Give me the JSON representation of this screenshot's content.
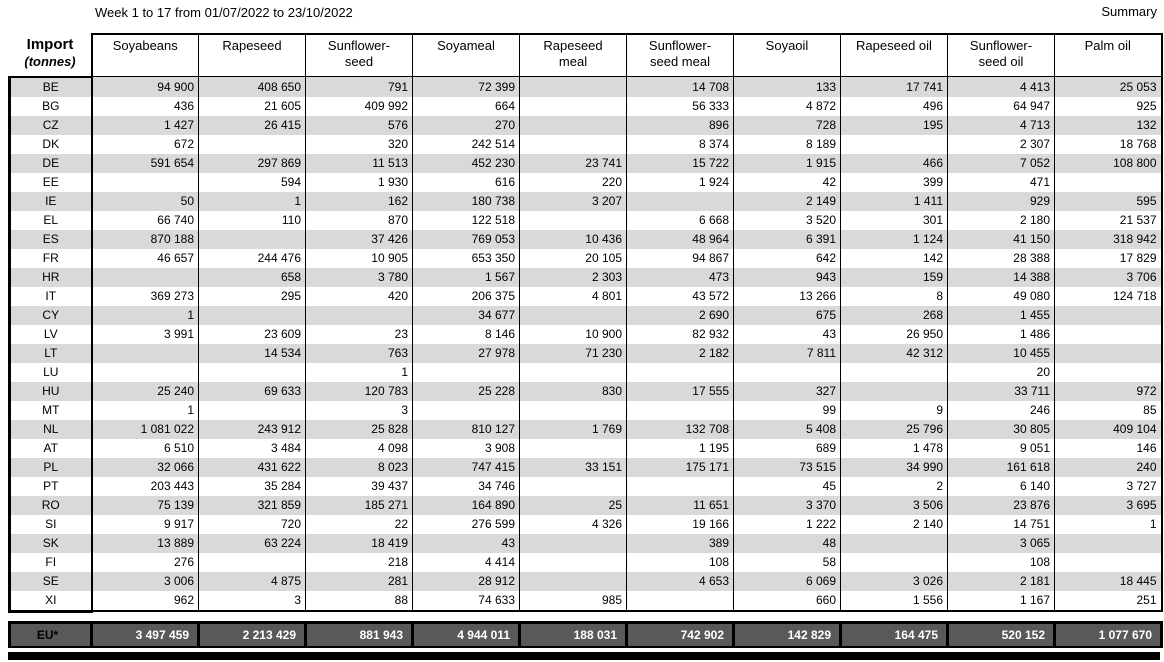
{
  "header": {
    "title": "Week 1 to 17 from 01/07/2022 to 23/10/2022",
    "summary_label": "Summary"
  },
  "table": {
    "corner": {
      "label": "Import",
      "unit": "(tonnes)"
    },
    "columns": [
      "Soyabeans",
      "Rapeseed",
      "Sunflower-seed",
      "Soyameal",
      "Rapeseed meal",
      "Sunflower-seed meal",
      "Soyaoil",
      "Rapeseed oil",
      "Sunflower-seed oil",
      "Palm oil"
    ],
    "rows": [
      {
        "country": "BE",
        "values": [
          "94 900",
          "408 650",
          "791",
          "72 399",
          "",
          "14 708",
          "133",
          "17 741",
          "4 413",
          "25 053"
        ]
      },
      {
        "country": "BG",
        "values": [
          "436",
          "21 605",
          "409 992",
          "664",
          "",
          "56 333",
          "4 872",
          "496",
          "64 947",
          "925"
        ]
      },
      {
        "country": "CZ",
        "values": [
          "1 427",
          "26 415",
          "576",
          "270",
          "",
          "896",
          "728",
          "195",
          "4 713",
          "132"
        ]
      },
      {
        "country": "DK",
        "values": [
          "672",
          "",
          "320",
          "242 514",
          "",
          "8 374",
          "8 189",
          "",
          "2 307",
          "18 768"
        ]
      },
      {
        "country": "DE",
        "values": [
          "591 654",
          "297 869",
          "11 513",
          "452 230",
          "23 741",
          "15 722",
          "1 915",
          "466",
          "7 052",
          "108 800"
        ]
      },
      {
        "country": "EE",
        "values": [
          "",
          "594",
          "1 930",
          "616",
          "220",
          "1 924",
          "42",
          "399",
          "471",
          ""
        ]
      },
      {
        "country": "IE",
        "values": [
          "50",
          "1",
          "162",
          "180 738",
          "3 207",
          "",
          "2 149",
          "1 411",
          "929",
          "595"
        ]
      },
      {
        "country": "EL",
        "values": [
          "66 740",
          "110",
          "870",
          "122 518",
          "",
          "6 668",
          "3 520",
          "301",
          "2 180",
          "21 537"
        ]
      },
      {
        "country": "ES",
        "values": [
          "870 188",
          "",
          "37 426",
          "769 053",
          "10 436",
          "48 964",
          "6 391",
          "1 124",
          "41 150",
          "318 942"
        ]
      },
      {
        "country": "FR",
        "values": [
          "46 657",
          "244 476",
          "10 905",
          "653 350",
          "20 105",
          "94 867",
          "642",
          "142",
          "28 388",
          "17 829"
        ]
      },
      {
        "country": "HR",
        "values": [
          "",
          "658",
          "3 780",
          "1 567",
          "2 303",
          "473",
          "943",
          "159",
          "14 388",
          "3 706"
        ]
      },
      {
        "country": "IT",
        "values": [
          "369 273",
          "295",
          "420",
          "206 375",
          "4 801",
          "43 572",
          "13 266",
          "8",
          "49 080",
          "124 718"
        ]
      },
      {
        "country": "CY",
        "values": [
          "1",
          "",
          "",
          "34 677",
          "",
          "2 690",
          "675",
          "268",
          "1 455",
          ""
        ]
      },
      {
        "country": "LV",
        "values": [
          "3 991",
          "23 609",
          "23",
          "8 146",
          "10 900",
          "82 932",
          "43",
          "26 950",
          "1 486",
          ""
        ]
      },
      {
        "country": "LT",
        "values": [
          "",
          "14 534",
          "763",
          "27 978",
          "71 230",
          "2 182",
          "7 811",
          "42 312",
          "10 455",
          ""
        ]
      },
      {
        "country": "LU",
        "values": [
          "",
          "",
          "1",
          "",
          "",
          "",
          "",
          "",
          "20",
          ""
        ]
      },
      {
        "country": "HU",
        "values": [
          "25 240",
          "69 633",
          "120 783",
          "25 228",
          "830",
          "17 555",
          "327",
          "",
          "33 711",
          "972"
        ]
      },
      {
        "country": "MT",
        "values": [
          "1",
          "",
          "3",
          "",
          "",
          "",
          "99",
          "9",
          "246",
          "85"
        ]
      },
      {
        "country": "NL",
        "values": [
          "1 081 022",
          "243 912",
          "25 828",
          "810 127",
          "1 769",
          "132 708",
          "5 408",
          "25 796",
          "30 805",
          "409 104"
        ]
      },
      {
        "country": "AT",
        "values": [
          "6 510",
          "3 484",
          "4 098",
          "3 908",
          "",
          "1 195",
          "689",
          "1 478",
          "9 051",
          "146"
        ]
      },
      {
        "country": "PL",
        "values": [
          "32 066",
          "431 622",
          "8 023",
          "747 415",
          "33 151",
          "175 171",
          "73 515",
          "34 990",
          "161 618",
          "240"
        ]
      },
      {
        "country": "PT",
        "values": [
          "203 443",
          "35 284",
          "39 437",
          "34 746",
          "",
          "",
          "45",
          "2",
          "6 140",
          "3 727"
        ]
      },
      {
        "country": "RO",
        "values": [
          "75 139",
          "321 859",
          "185 271",
          "164 890",
          "25",
          "11 651",
          "3 370",
          "3 506",
          "23 876",
          "3 695"
        ]
      },
      {
        "country": "SI",
        "values": [
          "9 917",
          "720",
          "22",
          "276 599",
          "4 326",
          "19 166",
          "1 222",
          "2 140",
          "14 751",
          "1"
        ]
      },
      {
        "country": "SK",
        "values": [
          "13 889",
          "63 224",
          "18 419",
          "43",
          "",
          "389",
          "48",
          "",
          "3 065",
          ""
        ]
      },
      {
        "country": "FI",
        "values": [
          "276",
          "",
          "218",
          "4 414",
          "",
          "108",
          "58",
          "",
          "108",
          ""
        ]
      },
      {
        "country": "SE",
        "values": [
          "3 006",
          "4 875",
          "281",
          "28 912",
          "",
          "4 653",
          "6 069",
          "3 026",
          "2 181",
          "18 445"
        ]
      },
      {
        "country": "XI",
        "values": [
          "962",
          "3",
          "88",
          "74 633",
          "985",
          "",
          "660",
          "1 556",
          "1 167",
          "251"
        ]
      }
    ],
    "total": {
      "label": "EU*",
      "values": [
        "3 497 459",
        "2 213 429",
        "881 943",
        "4 944 011",
        "188 031",
        "742 902",
        "142 829",
        "164 475",
        "520 152",
        "1 077 670"
      ]
    }
  },
  "colors": {
    "stripe_row": "#d9d9d9",
    "total_row_bg": "#595959",
    "total_row_text": "#ffffff",
    "border": "#000000"
  }
}
